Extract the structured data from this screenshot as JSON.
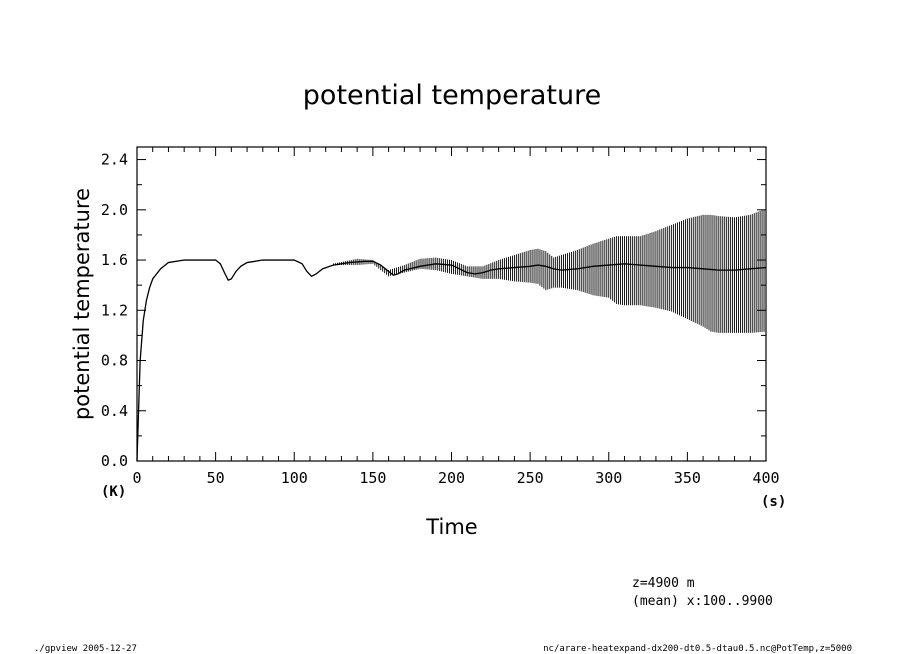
{
  "chart_data": {
    "type": "line",
    "title": "potential temperature",
    "xlabel": "Time",
    "ylabel": "potential temperature",
    "x_unit": "(s)",
    "y_unit": "(K)",
    "xlim": [
      0,
      400
    ],
    "ylim": [
      0,
      2.5
    ],
    "x_ticks": [
      0,
      50,
      100,
      150,
      200,
      250,
      300,
      350,
      400
    ],
    "x_tick_labels": [
      "0",
      "50",
      "100",
      "150",
      "200",
      "250",
      "300",
      "350",
      "400"
    ],
    "y_ticks": [
      0.0,
      0.4,
      0.8,
      1.2,
      1.6,
      2.0,
      2.4
    ],
    "y_tick_labels": [
      "0.0",
      "0.4",
      "0.8",
      "1.2",
      "1.6",
      "2.0",
      "2.4"
    ],
    "grid": false,
    "line_color": "#000000",
    "center_line": {
      "x": [
        0,
        2,
        4,
        6,
        8,
        10,
        15,
        20,
        30,
        40,
        50,
        53,
        56,
        58,
        60,
        63,
        66,
        70,
        80,
        90,
        100,
        105,
        108,
        111,
        114,
        118,
        125,
        135,
        145,
        150,
        155,
        160,
        163,
        166,
        170,
        180,
        190,
        200,
        205,
        210,
        215,
        220,
        225,
        230,
        240,
        250,
        255,
        260,
        265,
        270,
        280,
        290,
        300,
        310,
        320,
        330,
        340,
        350,
        360,
        370,
        380,
        390,
        400
      ],
      "y": [
        0,
        0.8,
        1.12,
        1.28,
        1.38,
        1.45,
        1.53,
        1.58,
        1.6,
        1.6,
        1.6,
        1.57,
        1.49,
        1.44,
        1.45,
        1.51,
        1.55,
        1.58,
        1.6,
        1.6,
        1.6,
        1.57,
        1.51,
        1.47,
        1.49,
        1.53,
        1.56,
        1.58,
        1.59,
        1.59,
        1.56,
        1.51,
        1.48,
        1.49,
        1.52,
        1.55,
        1.57,
        1.56,
        1.53,
        1.5,
        1.49,
        1.5,
        1.52,
        1.53,
        1.54,
        1.55,
        1.56,
        1.55,
        1.53,
        1.52,
        1.53,
        1.55,
        1.56,
        1.57,
        1.56,
        1.55,
        1.54,
        1.54,
        1.53,
        1.52,
        1.52,
        1.53,
        1.54
      ]
    },
    "oscillation_envelope": {
      "x": [
        0,
        120,
        140,
        150,
        160,
        170,
        180,
        190,
        200,
        210,
        220,
        230,
        240,
        250,
        255,
        260,
        265,
        270,
        280,
        290,
        300,
        305,
        310,
        320,
        330,
        340,
        350,
        360,
        365,
        370,
        380,
        390,
        400
      ],
      "upper": [
        0,
        1.56,
        1.61,
        1.6,
        1.52,
        1.56,
        1.61,
        1.62,
        1.6,
        1.55,
        1.55,
        1.6,
        1.64,
        1.68,
        1.69,
        1.67,
        1.62,
        1.64,
        1.68,
        1.73,
        1.77,
        1.79,
        1.79,
        1.79,
        1.83,
        1.88,
        1.93,
        1.96,
        1.96,
        1.95,
        1.94,
        1.96,
        2.01
      ],
      "lower": [
        0,
        1.56,
        1.56,
        1.57,
        1.47,
        1.5,
        1.53,
        1.52,
        1.49,
        1.47,
        1.45,
        1.45,
        1.43,
        1.42,
        1.41,
        1.36,
        1.38,
        1.38,
        1.36,
        1.32,
        1.3,
        1.25,
        1.24,
        1.24,
        1.22,
        1.19,
        1.13,
        1.07,
        1.03,
        1.02,
        1.02,
        1.02,
        1.03
      ]
    }
  },
  "annotations": {
    "z_level": "z=4900  m",
    "mean_info": "(mean) x:100..9900"
  },
  "footer": {
    "left": "./gpview  2005-12-27",
    "right": "nc/arare-heatexpand-dx200-dt0.5-dtau0.5.nc@PotTemp,z=5000"
  }
}
